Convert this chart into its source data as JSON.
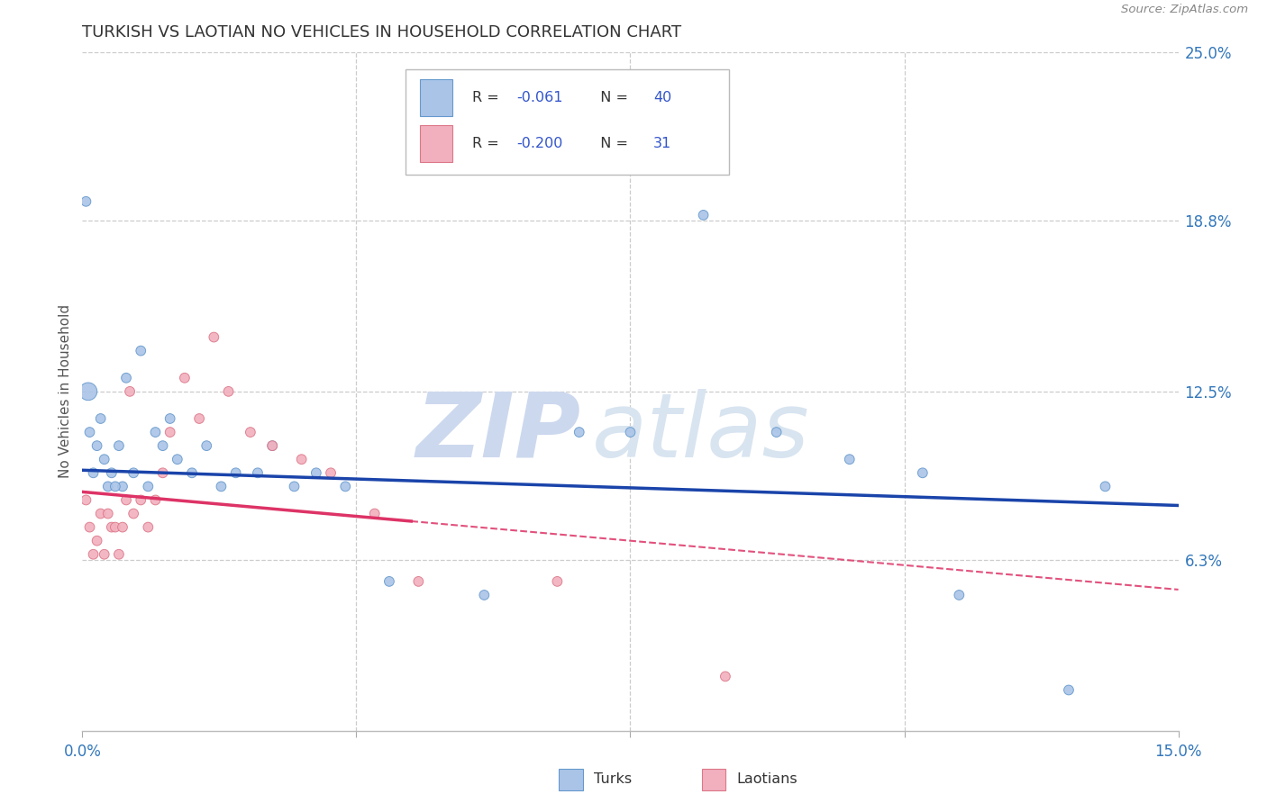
{
  "title": "TURKISH VS LAOTIAN NO VEHICLES IN HOUSEHOLD CORRELATION CHART",
  "source": "Source: ZipAtlas.com",
  "ylabel": "No Vehicles in Household",
  "xlim": [
    0.0,
    15.0
  ],
  "ylim": [
    0.0,
    25.0
  ],
  "xticks": [
    0.0,
    3.75,
    7.5,
    11.25,
    15.0
  ],
  "xtick_labels": [
    "0.0%",
    "",
    "",
    "",
    "15.0%"
  ],
  "ytick_vals_right": [
    25.0,
    18.8,
    12.5,
    6.3
  ],
  "ytick_labels_right": [
    "25.0%",
    "18.8%",
    "12.5%",
    "6.3%"
  ],
  "turks_color": "#aac4e8",
  "laotians_color": "#f2b0be",
  "turks_edge_color": "#6699cc",
  "laotians_edge_color": "#dd7788",
  "blue_line_color": "#1a44aa",
  "pink_line_color": "#dd3366",
  "grid_color": "#cccccc",
  "watermark_color": "#dce8f5",
  "blue_line_y0": 9.6,
  "blue_line_y1": 8.3,
  "pink_line_y0": 8.8,
  "pink_line_y1": 5.2,
  "pink_solid_end_x": 4.5,
  "turks_x": [
    0.05,
    0.1,
    0.15,
    0.2,
    0.25,
    0.3,
    0.35,
    0.4,
    0.5,
    0.55,
    0.6,
    0.7,
    0.8,
    0.9,
    1.0,
    1.1,
    1.2,
    1.3,
    1.5,
    1.7,
    1.9,
    2.1,
    2.4,
    2.6,
    2.9,
    3.2,
    3.6,
    4.2,
    5.5,
    6.8,
    7.5,
    8.5,
    9.5,
    10.5,
    11.5,
    12.0,
    13.5,
    14.0,
    0.08,
    0.45
  ],
  "turks_y": [
    19.5,
    11.0,
    9.5,
    10.5,
    11.5,
    10.0,
    9.0,
    9.5,
    10.5,
    9.0,
    13.0,
    9.5,
    14.0,
    9.0,
    11.0,
    10.5,
    11.5,
    10.0,
    9.5,
    10.5,
    9.0,
    9.5,
    9.5,
    10.5,
    9.0,
    9.5,
    9.0,
    5.5,
    5.0,
    11.0,
    11.0,
    19.0,
    11.0,
    10.0,
    9.5,
    5.0,
    1.5,
    9.0,
    12.5,
    9.0
  ],
  "turks_sizes": [
    60,
    60,
    60,
    60,
    60,
    60,
    60,
    60,
    60,
    60,
    60,
    60,
    60,
    60,
    60,
    60,
    60,
    60,
    60,
    60,
    60,
    60,
    60,
    60,
    60,
    60,
    60,
    60,
    60,
    60,
    60,
    60,
    60,
    60,
    60,
    60,
    60,
    60,
    200,
    60
  ],
  "laotians_x": [
    0.05,
    0.1,
    0.15,
    0.2,
    0.25,
    0.3,
    0.35,
    0.4,
    0.45,
    0.5,
    0.55,
    0.6,
    0.7,
    0.8,
    0.9,
    1.0,
    1.1,
    1.2,
    1.4,
    1.6,
    1.8,
    2.0,
    2.3,
    2.6,
    3.0,
    3.4,
    4.0,
    4.6,
    6.5,
    8.8,
    0.65
  ],
  "laotians_y": [
    8.5,
    7.5,
    6.5,
    7.0,
    8.0,
    6.5,
    8.0,
    7.5,
    7.5,
    6.5,
    7.5,
    8.5,
    8.0,
    8.5,
    7.5,
    8.5,
    9.5,
    11.0,
    13.0,
    11.5,
    14.5,
    12.5,
    11.0,
    10.5,
    10.0,
    9.5,
    8.0,
    5.5,
    5.5,
    2.0,
    12.5
  ],
  "laotians_sizes": [
    60,
    60,
    60,
    60,
    60,
    60,
    60,
    60,
    60,
    60,
    60,
    60,
    60,
    60,
    60,
    60,
    60,
    60,
    60,
    60,
    60,
    60,
    60,
    60,
    60,
    60,
    60,
    60,
    60,
    60,
    60
  ]
}
